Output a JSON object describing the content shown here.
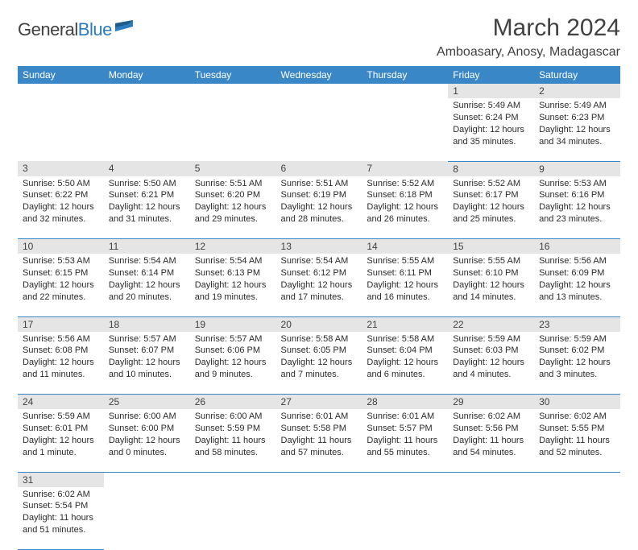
{
  "brand": {
    "name_a": "General",
    "name_b": "Blue"
  },
  "title": "March 2024",
  "location": "Amboasary, Anosy, Madagascar",
  "colors": {
    "header_bg": "#3a87c7",
    "header_text": "#ffffff",
    "daynum_bg": "#e5e5e5",
    "text": "#414141",
    "rule": "#3a87c7"
  },
  "day_headers": [
    "Sunday",
    "Monday",
    "Tuesday",
    "Wednesday",
    "Thursday",
    "Friday",
    "Saturday"
  ],
  "weeks": [
    [
      null,
      null,
      null,
      null,
      null,
      {
        "n": "1",
        "sr": "5:49 AM",
        "ss": "6:24 PM",
        "dl": "12 hours and 35 minutes."
      },
      {
        "n": "2",
        "sr": "5:49 AM",
        "ss": "6:23 PM",
        "dl": "12 hours and 34 minutes."
      }
    ],
    [
      {
        "n": "3",
        "sr": "5:50 AM",
        "ss": "6:22 PM",
        "dl": "12 hours and 32 minutes."
      },
      {
        "n": "4",
        "sr": "5:50 AM",
        "ss": "6:21 PM",
        "dl": "12 hours and 31 minutes."
      },
      {
        "n": "5",
        "sr": "5:51 AM",
        "ss": "6:20 PM",
        "dl": "12 hours and 29 minutes."
      },
      {
        "n": "6",
        "sr": "5:51 AM",
        "ss": "6:19 PM",
        "dl": "12 hours and 28 minutes."
      },
      {
        "n": "7",
        "sr": "5:52 AM",
        "ss": "6:18 PM",
        "dl": "12 hours and 26 minutes."
      },
      {
        "n": "8",
        "sr": "5:52 AM",
        "ss": "6:17 PM",
        "dl": "12 hours and 25 minutes."
      },
      {
        "n": "9",
        "sr": "5:53 AM",
        "ss": "6:16 PM",
        "dl": "12 hours and 23 minutes."
      }
    ],
    [
      {
        "n": "10",
        "sr": "5:53 AM",
        "ss": "6:15 PM",
        "dl": "12 hours and 22 minutes."
      },
      {
        "n": "11",
        "sr": "5:54 AM",
        "ss": "6:14 PM",
        "dl": "12 hours and 20 minutes."
      },
      {
        "n": "12",
        "sr": "5:54 AM",
        "ss": "6:13 PM",
        "dl": "12 hours and 19 minutes."
      },
      {
        "n": "13",
        "sr": "5:54 AM",
        "ss": "6:12 PM",
        "dl": "12 hours and 17 minutes."
      },
      {
        "n": "14",
        "sr": "5:55 AM",
        "ss": "6:11 PM",
        "dl": "12 hours and 16 minutes."
      },
      {
        "n": "15",
        "sr": "5:55 AM",
        "ss": "6:10 PM",
        "dl": "12 hours and 14 minutes."
      },
      {
        "n": "16",
        "sr": "5:56 AM",
        "ss": "6:09 PM",
        "dl": "12 hours and 13 minutes."
      }
    ],
    [
      {
        "n": "17",
        "sr": "5:56 AM",
        "ss": "6:08 PM",
        "dl": "12 hours and 11 minutes."
      },
      {
        "n": "18",
        "sr": "5:57 AM",
        "ss": "6:07 PM",
        "dl": "12 hours and 10 minutes."
      },
      {
        "n": "19",
        "sr": "5:57 AM",
        "ss": "6:06 PM",
        "dl": "12 hours and 9 minutes."
      },
      {
        "n": "20",
        "sr": "5:58 AM",
        "ss": "6:05 PM",
        "dl": "12 hours and 7 minutes."
      },
      {
        "n": "21",
        "sr": "5:58 AM",
        "ss": "6:04 PM",
        "dl": "12 hours and 6 minutes."
      },
      {
        "n": "22",
        "sr": "5:59 AM",
        "ss": "6:03 PM",
        "dl": "12 hours and 4 minutes."
      },
      {
        "n": "23",
        "sr": "5:59 AM",
        "ss": "6:02 PM",
        "dl": "12 hours and 3 minutes."
      }
    ],
    [
      {
        "n": "24",
        "sr": "5:59 AM",
        "ss": "6:01 PM",
        "dl": "12 hours and 1 minute."
      },
      {
        "n": "25",
        "sr": "6:00 AM",
        "ss": "6:00 PM",
        "dl": "12 hours and 0 minutes."
      },
      {
        "n": "26",
        "sr": "6:00 AM",
        "ss": "5:59 PM",
        "dl": "11 hours and 58 minutes."
      },
      {
        "n": "27",
        "sr": "6:01 AM",
        "ss": "5:58 PM",
        "dl": "11 hours and 57 minutes."
      },
      {
        "n": "28",
        "sr": "6:01 AM",
        "ss": "5:57 PM",
        "dl": "11 hours and 55 minutes."
      },
      {
        "n": "29",
        "sr": "6:02 AM",
        "ss": "5:56 PM",
        "dl": "11 hours and 54 minutes."
      },
      {
        "n": "30",
        "sr": "6:02 AM",
        "ss": "5:55 PM",
        "dl": "11 hours and 52 minutes."
      }
    ],
    [
      {
        "n": "31",
        "sr": "6:02 AM",
        "ss": "5:54 PM",
        "dl": "11 hours and 51 minutes."
      },
      null,
      null,
      null,
      null,
      null,
      null
    ]
  ],
  "labels": {
    "sunrise": "Sunrise: ",
    "sunset": "Sunset: ",
    "daylight": "Daylight: "
  }
}
